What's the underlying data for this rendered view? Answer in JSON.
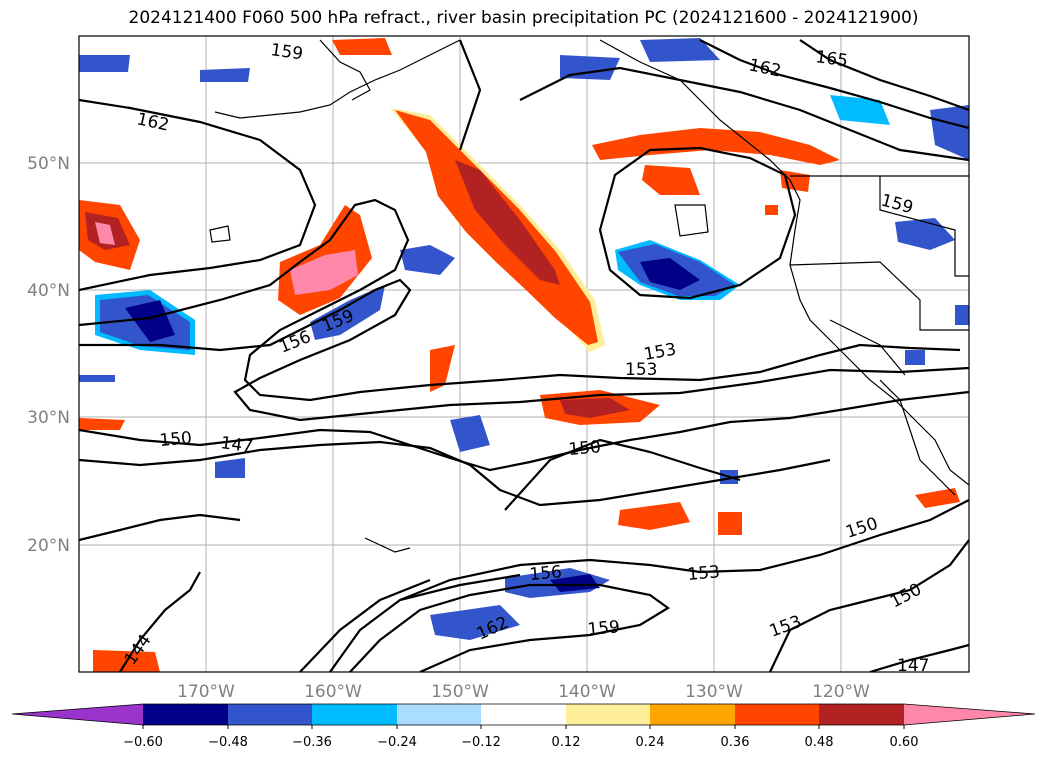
{
  "title": "2024121400 F060 500 hPa refract., river basin precipitation PC (2024121600 - 2024121900)",
  "map": {
    "lat_labels": [
      "50°N",
      "40°N",
      "30°N",
      "20°N"
    ],
    "lon_labels": [
      "170°W",
      "160°W",
      "150°W",
      "140°W",
      "130°W",
      "120°W"
    ],
    "contour_labels": [
      "159",
      "165",
      "162",
      "162",
      "159",
      "156",
      "159",
      "153",
      "153",
      "150",
      "147",
      "150",
      "150",
      "153",
      "156",
      "162",
      "159",
      "153",
      "150",
      "147",
      "144"
    ]
  },
  "colorbar": {
    "ticks": [
      "−0.60",
      "−0.48",
      "−0.36",
      "−0.24",
      "−0.12",
      "0.12",
      "0.24",
      "0.36",
      "0.48",
      "0.60"
    ],
    "colors": [
      "#9933cc",
      "#000088",
      "#3355cc",
      "#00bbff",
      "#aaddff",
      "#ffffff",
      "#ffee99",
      "#ffa500",
      "#ff4500",
      "#b22222",
      "#ff88aa"
    ]
  }
}
